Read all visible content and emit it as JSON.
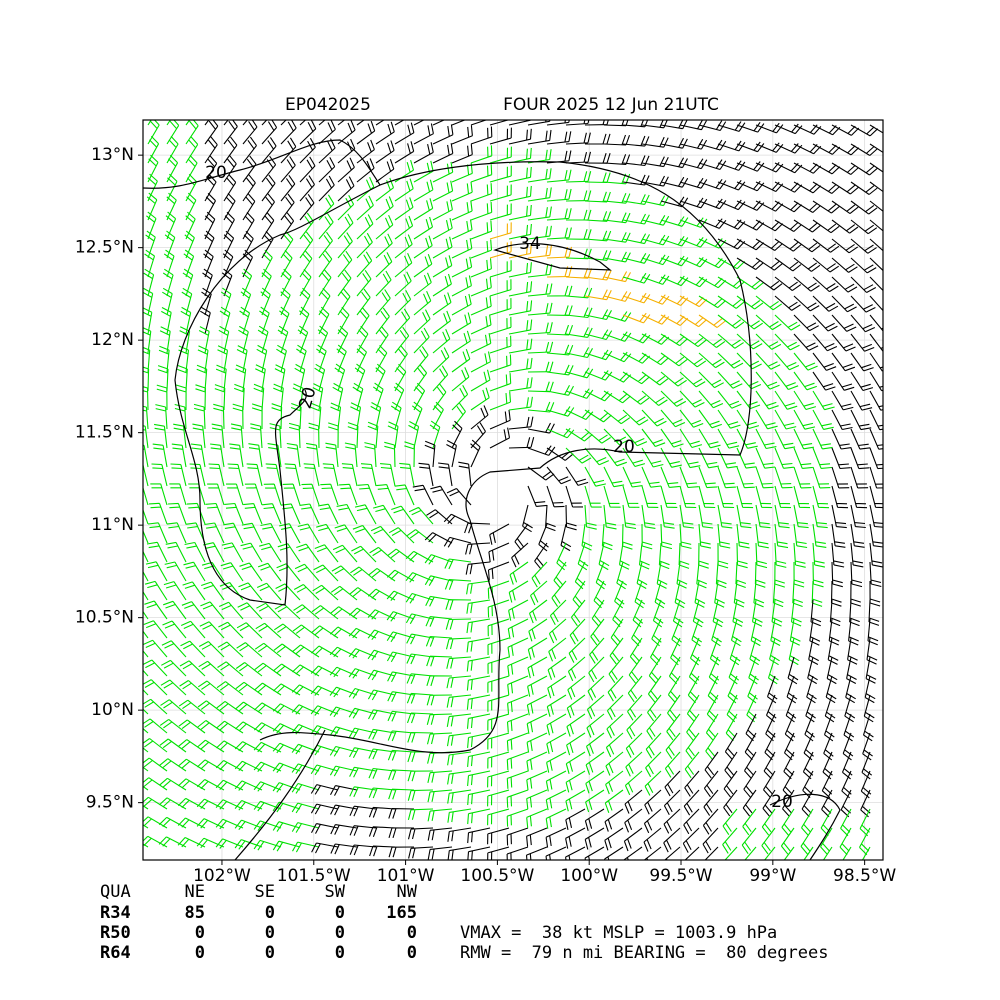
{
  "chart_data": {
    "type": "wind-barb-map",
    "title_left": "EP042025",
    "title_right": "FOUR 2025 12 Jun 21UTC",
    "xlim": [
      -102.43,
      -98.4
    ],
    "ylim": [
      9.19,
      13.19
    ],
    "xticks": [
      {
        "value": -102,
        "label": "102°W"
      },
      {
        "value": -101.5,
        "label": "101.5°W"
      },
      {
        "value": -101,
        "label": "101°W"
      },
      {
        "value": -100.5,
        "label": "100.5°W"
      },
      {
        "value": -100,
        "label": "100°W"
      },
      {
        "value": -99.5,
        "label": "99.5°W"
      },
      {
        "value": -99,
        "label": "99°W"
      },
      {
        "value": -98.5,
        "label": "98.5°W"
      }
    ],
    "yticks": [
      {
        "value": 9.5,
        "label": "9.5°N"
      },
      {
        "value": 10,
        "label": "10°N"
      },
      {
        "value": 10.5,
        "label": "10.5°N"
      },
      {
        "value": 11,
        "label": "11°N"
      },
      {
        "value": 11.5,
        "label": "11.5°N"
      },
      {
        "value": 12,
        "label": "12°N"
      },
      {
        "value": 12.5,
        "label": "12.5°N"
      },
      {
        "value": 13,
        "label": "13°N"
      }
    ],
    "grid": true,
    "contour_labels": [
      "20",
      "20",
      "20",
      "34",
      "20"
    ],
    "table": {
      "header": [
        "QUA",
        "NE",
        "SE",
        "SW",
        "NW"
      ],
      "rows": [
        [
          "R34",
          "85",
          "0",
          "0",
          "165"
        ],
        [
          "R50",
          "0",
          "0",
          "0",
          "0"
        ],
        [
          "R64",
          "0",
          "0",
          "0",
          "0"
        ]
      ]
    },
    "info": [
      "VMAX =  38 kt MSLP = 1003.9 hPa",
      "RMW =  79 n mi BEARING =  80 degrees"
    ]
  }
}
